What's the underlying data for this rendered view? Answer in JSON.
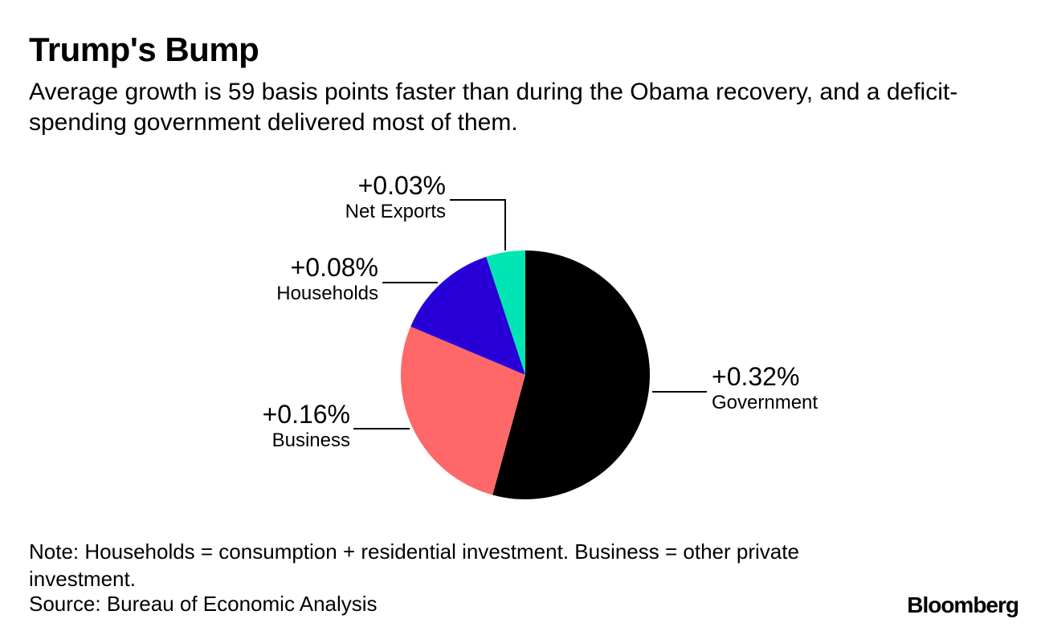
{
  "title": "Trump's Bump",
  "subtitle": "Average growth is 59 basis points faster than during the Obama recovery, and a deficit-spending government delivered most of them.",
  "chart_data": {
    "type": "pie",
    "title": "Trump's Bump",
    "slices": [
      {
        "name": "Government",
        "value": 0.32,
        "label": "+0.32%",
        "color": "#000000"
      },
      {
        "name": "Business",
        "value": 0.16,
        "label": "+0.16%",
        "color": "#ff6868"
      },
      {
        "name": "Households",
        "value": 0.08,
        "label": "+0.08%",
        "color": "#2800d7"
      },
      {
        "name": "Net Exports",
        "value": 0.03,
        "label": "+0.03%",
        "color": "#00e5b4"
      }
    ],
    "start": "12 o'clock",
    "direction": "clockwise"
  },
  "note": "Note: Households = consumption + residential investment. Business = other private investment.",
  "source": "Source: Bureau of Economic Analysis",
  "brand": "Bloomberg"
}
